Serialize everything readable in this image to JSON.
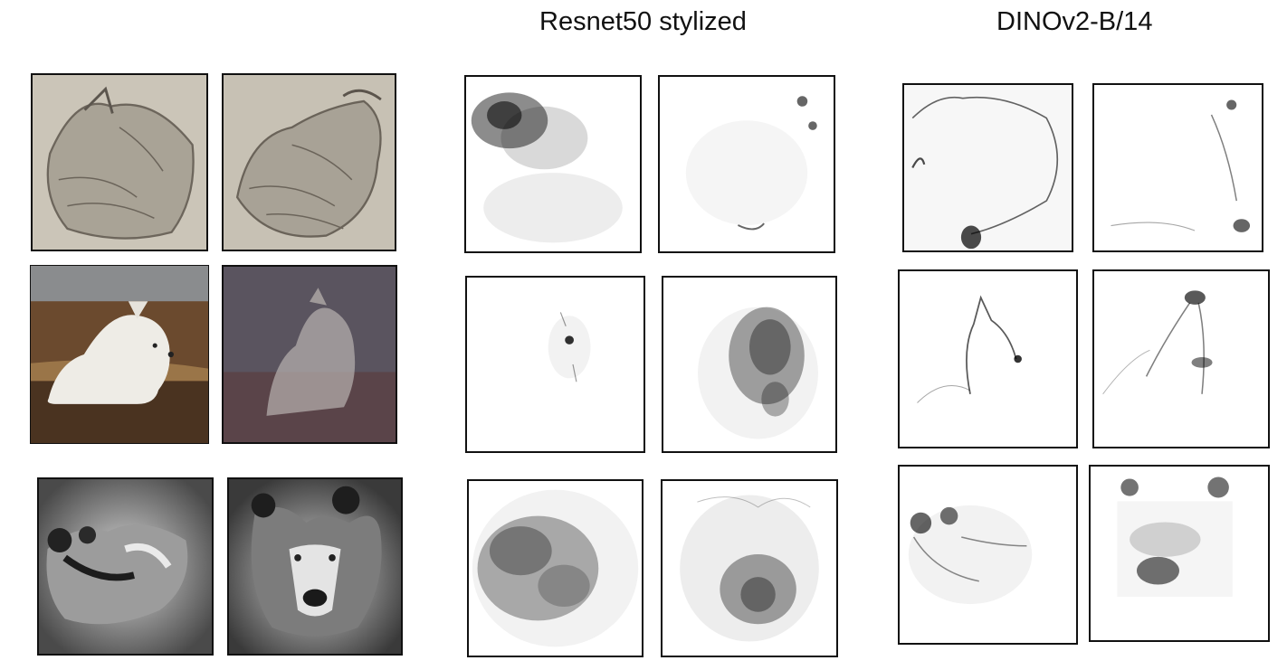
{
  "column_titles": {
    "col1": "",
    "col2": "Resnet50 stylized",
    "col3": "DINOv2-B/14"
  },
  "rows": [
    {
      "inputs": [
        "emboss-stylized sitting dog",
        "emboss-stylized sitting dog, alternate"
      ],
      "resnet_maps": [
        "diffuse dark attribution, upper left",
        "sparse attribution, right edge"
      ],
      "dino_maps": [
        "edge-contour attribution, legs",
        "sparse attribution, head and paws"
      ]
    },
    {
      "inputs": [
        "white wolf lying in dry grass",
        "color-noise stylized wolf"
      ],
      "resnet_maps": [
        "sparse attribution, eye",
        "dense attribution, body"
      ],
      "dino_maps": [
        "contour attribution, head",
        "contour attribution, head outline"
      ]
    },
    {
      "inputs": [
        "grayscale painted wolf, lying",
        "grayscale painted wolf face"
      ],
      "resnet_maps": [
        "dense attribution, body",
        "dense attribution, center"
      ],
      "dino_maps": [
        "attribution on head, left",
        "attribution on ears and mouth"
      ]
    }
  ]
}
